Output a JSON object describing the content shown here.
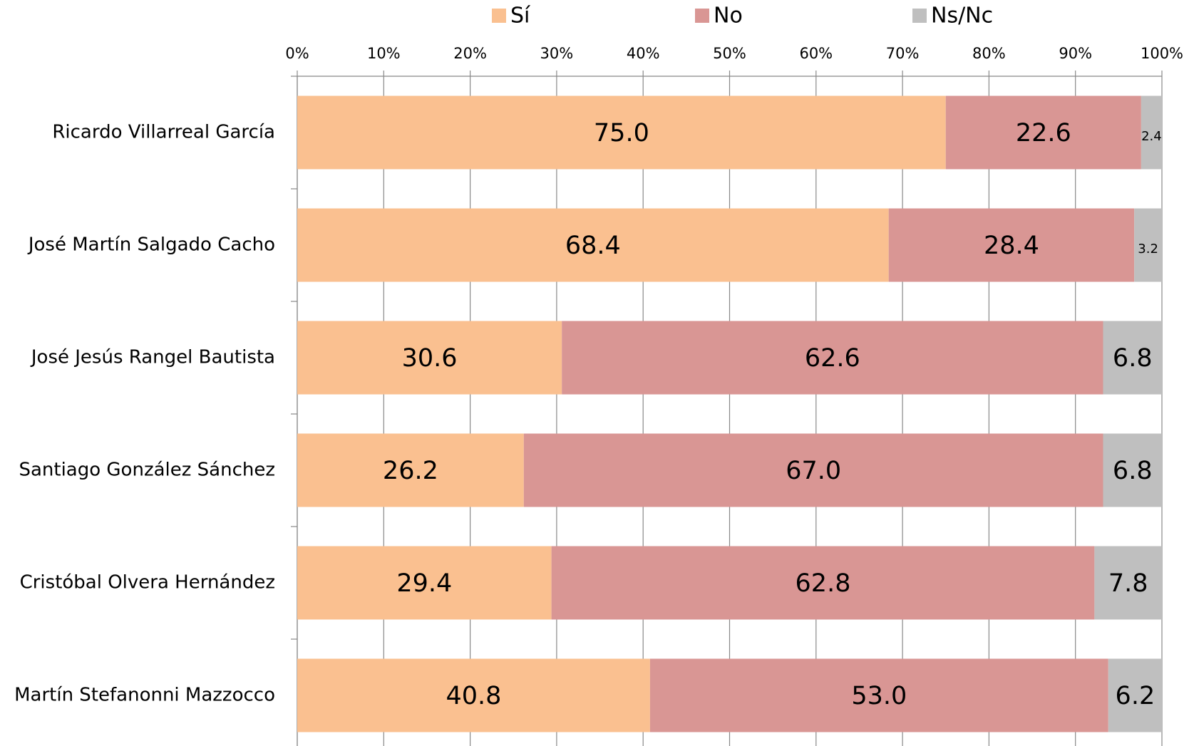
{
  "chart_data": {
    "type": "stacked_bar_horizontal",
    "categories": [
      "Ricardo Villarreal García",
      "José Martín Salgado Cacho",
      "José Jesús Rangel Bautista",
      "Santiago González Sánchez",
      "Cristóbal Olvera Hernández",
      "Martín Stefanonni Mazzocco"
    ],
    "series": [
      {
        "name": "Sí",
        "color": "#FAC090",
        "values": [
          75.0,
          68.4,
          30.6,
          26.2,
          29.4,
          40.8
        ],
        "value_labels": [
          "75.0",
          "68.4",
          "30.6",
          "26.2",
          "29.4",
          "40.8"
        ]
      },
      {
        "name": "No",
        "color": "#D99694",
        "values": [
          22.6,
          28.4,
          62.6,
          67.0,
          62.8,
          53.0
        ],
        "value_labels": [
          "22.6",
          "28.4",
          "62.6",
          "67.0",
          "62.8",
          "53.0"
        ]
      },
      {
        "name": "Ns/Nc",
        "color": "#BFBFBF",
        "values": [
          2.4,
          3.2,
          6.8,
          6.8,
          7.8,
          6.2
        ],
        "value_labels": [
          "2.4",
          "3.2",
          "6.8",
          "6.8",
          "7.8",
          "6.2"
        ]
      }
    ],
    "xlim": [
      0,
      100
    ],
    "xticks": [
      {
        "value": 0,
        "label": "0%"
      },
      {
        "value": 10,
        "label": "10%"
      },
      {
        "value": 20,
        "label": "20%"
      },
      {
        "value": 30,
        "label": "30%"
      },
      {
        "value": 40,
        "label": "40%"
      },
      {
        "value": 50,
        "label": "50%"
      },
      {
        "value": 60,
        "label": "60%"
      },
      {
        "value": 70,
        "label": "70%"
      },
      {
        "value": 80,
        "label": "80%"
      },
      {
        "value": 90,
        "label": "90%"
      },
      {
        "value": 100,
        "label": "100%"
      }
    ],
    "grid": true,
    "legend": "top"
  }
}
